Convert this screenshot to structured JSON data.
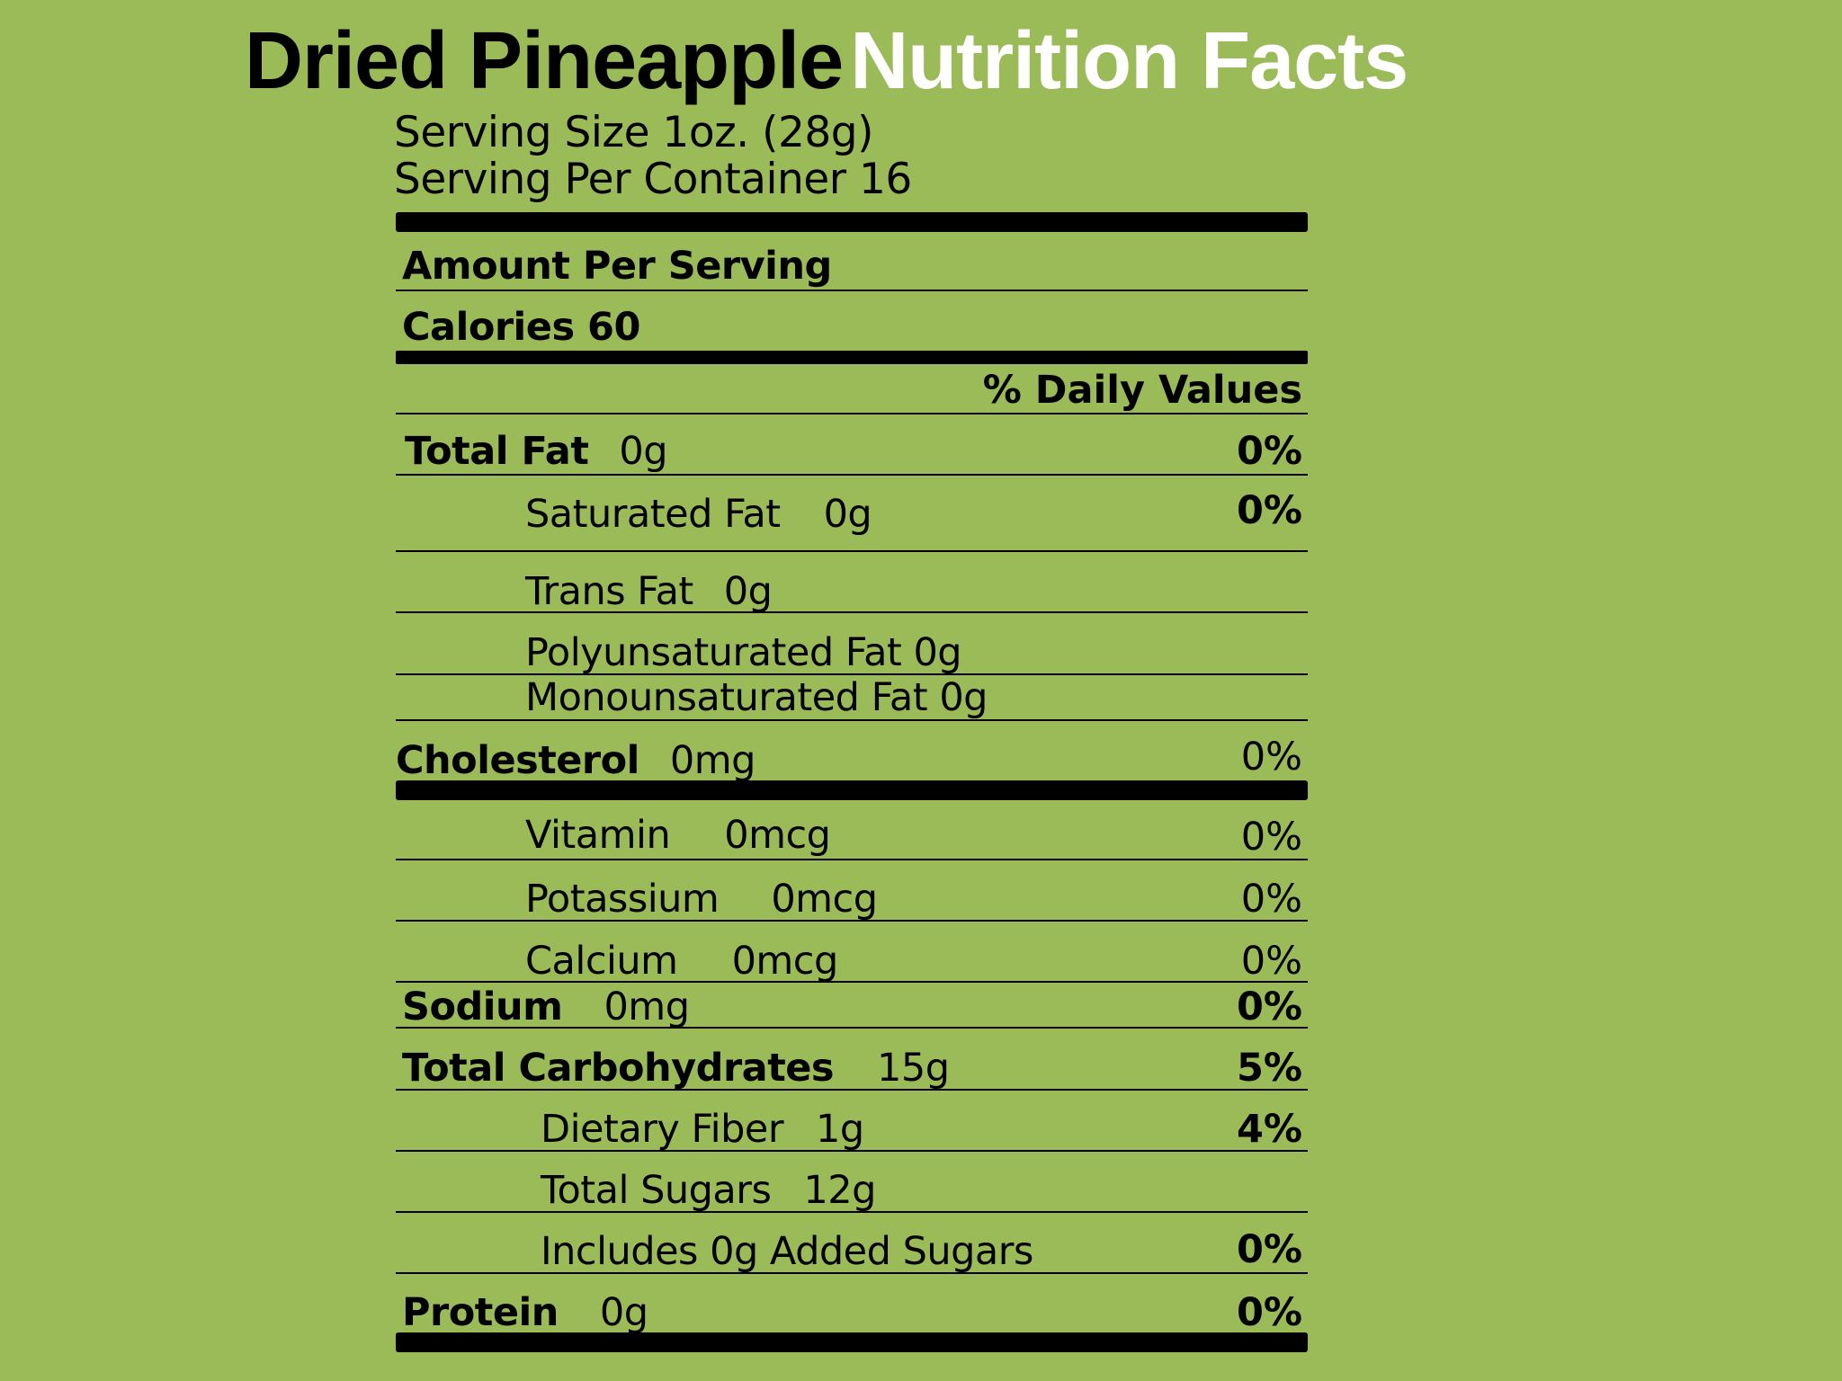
{
  "header": {
    "title_product": "Dried Pineapple",
    "title_label": "Nutrition Facts",
    "title_label_color": "#ffffff",
    "background_color": "#9bbb59"
  },
  "serving": {
    "size": "Serving Size 1oz. (28g)",
    "per_container": "Serving Per Container 16"
  },
  "amount_per_serving": "Amount Per Serving",
  "calories": "Calories 60",
  "daily_values_header": "% Daily Values",
  "nutrients": {
    "total_fat": {
      "name": "Total Fat",
      "amount": "0g",
      "dv": "0%"
    },
    "saturated_fat": {
      "name": "Saturated Fat",
      "amount": "0g",
      "dv": "0%"
    },
    "trans_fat": {
      "name": "Trans Fat",
      "amount": "0g"
    },
    "polyunsaturated_fat": {
      "name": "Polyunsaturated Fat 0g"
    },
    "monounsaturated_fat": {
      "name": "Monounsaturated Fat 0g"
    },
    "cholesterol": {
      "name": "Cholesterol",
      "amount": "0mg",
      "dv": "0%"
    },
    "vitamin": {
      "name": "Vitamin",
      "amount": "0mcg",
      "dv": "0%"
    },
    "potassium": {
      "name": "Potassium",
      "amount": "0mcg",
      "dv": "0%"
    },
    "calcium": {
      "name": "Calcium",
      "amount": "0mcg",
      "dv": "0%"
    },
    "sodium": {
      "name": "Sodium",
      "amount": "0mg",
      "dv": "0%"
    },
    "total_carbohydrates": {
      "name": "Total Carbohydrates",
      "amount": "15g",
      "dv": "5%"
    },
    "dietary_fiber": {
      "name": "Dietary Fiber",
      "amount": "1g",
      "dv": "4%"
    },
    "total_sugars": {
      "name": "Total Sugars",
      "amount": "12g"
    },
    "added_sugars": {
      "name": "Includes 0g Added Sugars",
      "dv": "0%"
    },
    "protein": {
      "name": "Protein",
      "amount": "0g",
      "dv": "0%"
    }
  }
}
